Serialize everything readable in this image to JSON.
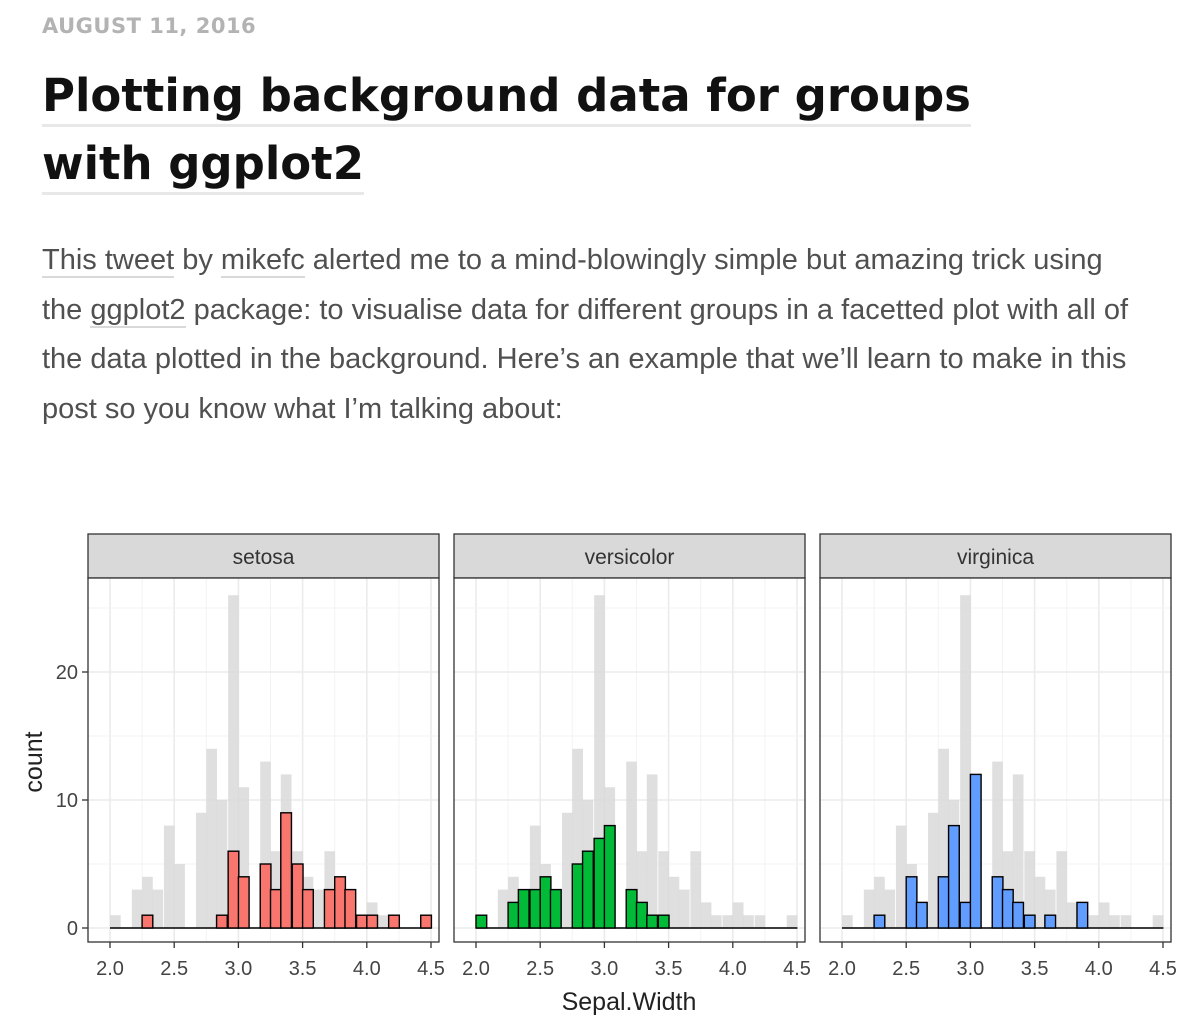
{
  "post": {
    "date": "AUGUST 11, 2016",
    "title": "Plotting background data for groups with ggplot2",
    "intro": {
      "link_tweet": "This tweet",
      "by": " by ",
      "link_author": "mikefc",
      "text1": " alerted me to a mind-blowingly simple but amazing trick using the ",
      "link_package": "ggplot2",
      "text2": " package: to visualise data for different groups in a facetted plot with all of the data plotted in the background. Here’s an example that we’ll learn to make in this post so you know what I’m talking about:"
    }
  },
  "chart_data": {
    "type": "bar",
    "xlabel": "Sepal.Width",
    "ylabel": "count",
    "xlim": [
      1.95,
      4.5
    ],
    "ylim": [
      0,
      26
    ],
    "x_ticks": [
      "2.0",
      "2.5",
      "3.0",
      "3.5",
      "4.0",
      "4.5"
    ],
    "y_ticks": [
      "0",
      "10",
      "20"
    ],
    "grid": true,
    "bin_width": 0.0833,
    "bins": [
      2.0,
      2.08,
      2.17,
      2.25,
      2.33,
      2.42,
      2.5,
      2.58,
      2.67,
      2.75,
      2.83,
      2.92,
      3.0,
      3.08,
      3.17,
      3.25,
      3.33,
      3.42,
      3.5,
      3.58,
      3.67,
      3.75,
      3.83,
      3.92,
      4.0,
      4.08,
      4.17,
      4.25,
      4.33,
      4.42
    ],
    "background_all": [
      1,
      0,
      3,
      4,
      3,
      8,
      5,
      0,
      9,
      14,
      10,
      26,
      11,
      0,
      13,
      6,
      12,
      6,
      4,
      3,
      6,
      2,
      1,
      1,
      2,
      1,
      1,
      0,
      0,
      1
    ],
    "series": [
      {
        "name": "setosa",
        "color": "#F8766D",
        "values": [
          0,
          0,
          0,
          1,
          0,
          0,
          0,
          0,
          0,
          0,
          1,
          6,
          4,
          0,
          5,
          3,
          9,
          5,
          3,
          0,
          3,
          4,
          3,
          1,
          1,
          0,
          1,
          0,
          0,
          1
        ]
      },
      {
        "name": "versicolor",
        "color": "#00BA38",
        "values": [
          1,
          0,
          0,
          2,
          3,
          3,
          4,
          3,
          0,
          5,
          6,
          7,
          8,
          0,
          3,
          2,
          1,
          1,
          0,
          0,
          0,
          0,
          0,
          0,
          0,
          0,
          0,
          0,
          0,
          0
        ]
      },
      {
        "name": "virginica",
        "color": "#619CFF",
        "values": [
          0,
          0,
          0,
          1,
          0,
          0,
          4,
          2,
          0,
          4,
          8,
          2,
          12,
          0,
          4,
          3,
          2,
          1,
          0,
          1,
          0,
          0,
          2,
          0,
          0,
          0,
          0,
          0,
          0,
          0
        ]
      }
    ],
    "colors": {
      "background_bar": "#d9d9d9",
      "strip": "#d9d9d9",
      "grid": "#ebebeb",
      "outline": "#000000"
    }
  }
}
